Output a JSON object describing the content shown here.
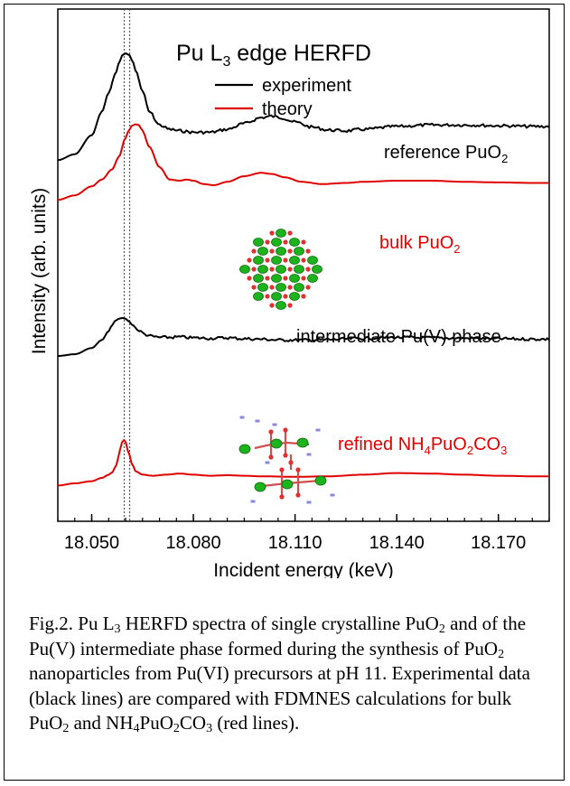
{
  "chart_data": {
    "type": "line",
    "title": "Pu L₃ edge HERFD",
    "xlabel": "Incident energy (keV)",
    "ylabel": "Intensity (arb. units)",
    "xlim": [
      18.04,
      18.185
    ],
    "x_ticks": [
      18.05,
      18.08,
      18.11,
      18.14,
      18.17
    ],
    "x_tick_labels": [
      "18.050",
      "18.080",
      "18.110",
      "18.140",
      "18.170"
    ],
    "grid": false,
    "legend": {
      "placement": "top",
      "entries": [
        {
          "label": "experiment",
          "color": "#000000"
        },
        {
          "label": "theory",
          "color": "#e00000"
        }
      ]
    },
    "reference_lines_x": [
      18.0596,
      18.0612
    ],
    "series": [
      {
        "name": "reference PuO₂",
        "kind": "experiment",
        "color": "#000000",
        "x": [
          18.04,
          18.045,
          18.05,
          18.053,
          18.055,
          18.057,
          18.058,
          18.059,
          18.06,
          18.061,
          18.062,
          18.063,
          18.065,
          18.067,
          18.07,
          18.073,
          18.076,
          18.08,
          18.085,
          18.09,
          18.095,
          18.1,
          18.103,
          18.106,
          18.11,
          18.115,
          18.12,
          18.125,
          18.13,
          18.14,
          18.15,
          18.16,
          18.17,
          18.18,
          18.185
        ],
        "y": [
          0.19,
          0.23,
          0.36,
          0.52,
          0.65,
          0.78,
          0.85,
          0.905,
          0.92,
          0.91,
          0.87,
          0.8,
          0.66,
          0.52,
          0.43,
          0.4,
          0.39,
          0.38,
          0.38,
          0.4,
          0.44,
          0.48,
          0.49,
          0.48,
          0.45,
          0.415,
          0.395,
          0.39,
          0.4,
          0.42,
          0.43,
          0.43,
          0.425,
          0.42,
          0.42
        ]
      },
      {
        "name": "bulk PuO₂",
        "kind": "theory",
        "color": "#e00000",
        "x": [
          18.04,
          18.045,
          18.05,
          18.053,
          18.056,
          18.058,
          18.06,
          18.061,
          18.062,
          18.063,
          18.064,
          18.065,
          18.067,
          18.07,
          18.073,
          18.076,
          18.078,
          18.08,
          18.083,
          18.086,
          18.09,
          18.095,
          18.1,
          18.103,
          18.107,
          18.112,
          18.118,
          18.125,
          18.13,
          18.14,
          18.15,
          18.16,
          18.17,
          18.18,
          18.185
        ],
        "y": [
          0.15,
          0.19,
          0.27,
          0.33,
          0.42,
          0.53,
          0.7,
          0.77,
          0.81,
          0.82,
          0.81,
          0.76,
          0.62,
          0.44,
          0.33,
          0.32,
          0.33,
          0.32,
          0.29,
          0.28,
          0.31,
          0.36,
          0.39,
          0.38,
          0.35,
          0.31,
          0.29,
          0.3,
          0.31,
          0.32,
          0.32,
          0.31,
          0.305,
          0.3,
          0.3
        ]
      },
      {
        "name": "intermediate Pu(V) phase",
        "kind": "experiment",
        "color": "#000000",
        "x": [
          18.04,
          18.045,
          18.05,
          18.053,
          18.055,
          18.056,
          18.057,
          18.058,
          18.059,
          18.06,
          18.061,
          18.062,
          18.064,
          18.066,
          18.068,
          18.07,
          18.073,
          18.076,
          18.08,
          18.085,
          18.09,
          18.095,
          18.1,
          18.105,
          18.11,
          18.115,
          18.12,
          18.13,
          18.14,
          18.15,
          18.16,
          18.17,
          18.18,
          18.185
        ],
        "y": [
          0.02,
          0.04,
          0.11,
          0.2,
          0.3,
          0.37,
          0.42,
          0.44,
          0.45,
          0.44,
          0.41,
          0.37,
          0.3,
          0.26,
          0.24,
          0.23,
          0.23,
          0.235,
          0.225,
          0.22,
          0.225,
          0.215,
          0.21,
          0.2,
          0.2,
          0.2,
          0.205,
          0.22,
          0.23,
          0.225,
          0.22,
          0.215,
          0.21,
          0.21
        ]
      },
      {
        "name": "refined NH₄PuO₂CO₃",
        "kind": "theory",
        "color": "#e00000",
        "x": [
          18.04,
          18.045,
          18.05,
          18.053,
          18.055,
          18.056,
          18.057,
          18.058,
          18.0585,
          18.059,
          18.0595,
          18.06,
          18.061,
          18.062,
          18.063,
          18.065,
          18.068,
          18.072,
          18.076,
          18.08,
          18.085,
          18.09,
          18.095,
          18.1,
          18.11,
          18.12,
          18.13,
          18.14,
          18.15,
          18.16,
          18.17,
          18.18,
          18.185
        ],
        "y": [
          -0.02,
          0.0,
          0.02,
          0.05,
          0.08,
          0.1,
          0.15,
          0.25,
          0.32,
          0.38,
          0.4,
          0.38,
          0.27,
          0.17,
          0.11,
          0.08,
          0.07,
          0.08,
          0.09,
          0.08,
          0.07,
          0.075,
          0.07,
          0.065,
          0.06,
          0.065,
          0.08,
          0.095,
          0.09,
          0.08,
          0.07,
          0.065,
          0.065
        ]
      }
    ],
    "series_labels": [
      "reference PuO₂",
      "bulk PuO₂",
      "intermediate Pu(V) phase",
      "refined NH₄PuO₂CO₃"
    ]
  },
  "caption": {
    "text": "Fig.2. Pu L₃ HERFD spectra of single crystalline PuO₂ and of the Pu(V) intermediate phase formed during the synthesis of PuO₂ nanoparticles from Pu(VI) precursors at pH 11. Experimental data (black lines) are compared with FDMNES calculations for bulk PuO₂ and NH₄PuO₂CO₃ (red lines)."
  },
  "colors": {
    "experiment": "#000000",
    "theory": "#e00000",
    "atom_pu": "#1db31d",
    "atom_o": "#e03030",
    "atom_n": "#8888dd"
  },
  "icons": [
    "puo2-crystal-structure-image",
    "nh4puo2co3-molecular-structure-image"
  ]
}
